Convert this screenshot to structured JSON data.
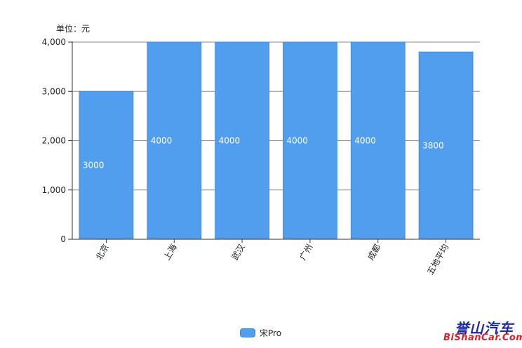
{
  "unit_label": "单位：元",
  "legend": {
    "label": "宋Pro"
  },
  "watermark": {
    "top": "誉山汽车",
    "bottom": "BiShanCar.Com"
  },
  "chart_data": {
    "type": "bar",
    "categories": [
      "北京",
      "上海",
      "武汉",
      "广州",
      "成都",
      "五地平均"
    ],
    "series": [
      {
        "name": "宋Pro",
        "values": [
          3000,
          4000,
          4000,
          4000,
          4000,
          3800
        ],
        "color": "#519DEE"
      }
    ],
    "data_labels": [
      "3000",
      "4000",
      "4000",
      "4000",
      "4000",
      "3800"
    ],
    "ylim": [
      0,
      4000
    ],
    "yticks": [
      0,
      1000,
      2000,
      3000,
      4000
    ],
    "ytick_labels": [
      "0",
      "1,000",
      "2,000",
      "3,000",
      "4,000"
    ],
    "grid": true,
    "legend_position": "bottom-center"
  }
}
